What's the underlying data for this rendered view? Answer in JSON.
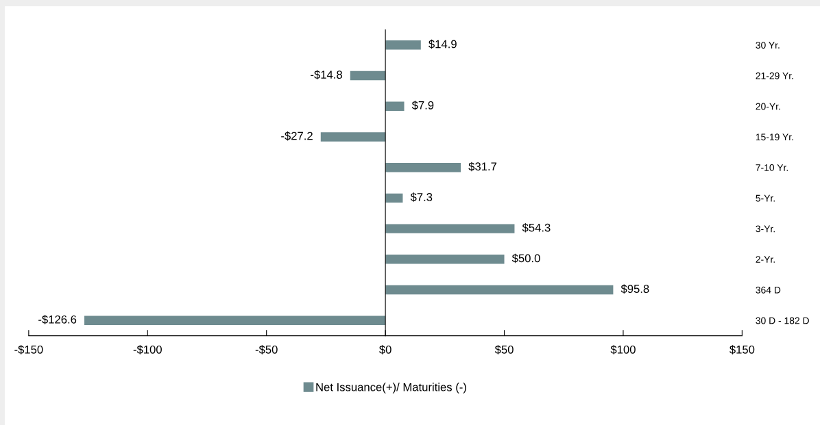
{
  "chart_data": {
    "type": "bar",
    "orientation": "horizontal",
    "categories": [
      "30 Yr.",
      "21-29 Yr.",
      "20-Yr.",
      "15-19 Yr.",
      "7-10 Yr.",
      "5-Yr.",
      "3-Yr.",
      "2-Yr.",
      "364 D",
      "30 D - 182 D"
    ],
    "series": [
      {
        "name": "Net Issuance(+)/ Maturities (-)",
        "color": "#6e8b8f",
        "values": [
          14.9,
          -14.8,
          7.9,
          -27.2,
          31.7,
          7.3,
          54.3,
          50.0,
          95.8,
          -126.6
        ],
        "value_labels": [
          "$14.9",
          "-$14.8",
          "$7.9",
          "-$27.2",
          "$31.7",
          "$7.3",
          "$54.3",
          "$50.0",
          "$95.8",
          "-$126.6"
        ]
      }
    ],
    "xlim": [
      -150,
      150
    ],
    "xticks": [
      {
        "value": -150,
        "label": "-$150"
      },
      {
        "value": -100,
        "label": "-$100"
      },
      {
        "value": -50,
        "label": "-$50"
      },
      {
        "value": 0,
        "label": "$0"
      },
      {
        "value": 50,
        "label": "$50"
      },
      {
        "value": 100,
        "label": "$100"
      },
      {
        "value": 150,
        "label": "$150"
      }
    ],
    "legend": "bottom"
  }
}
